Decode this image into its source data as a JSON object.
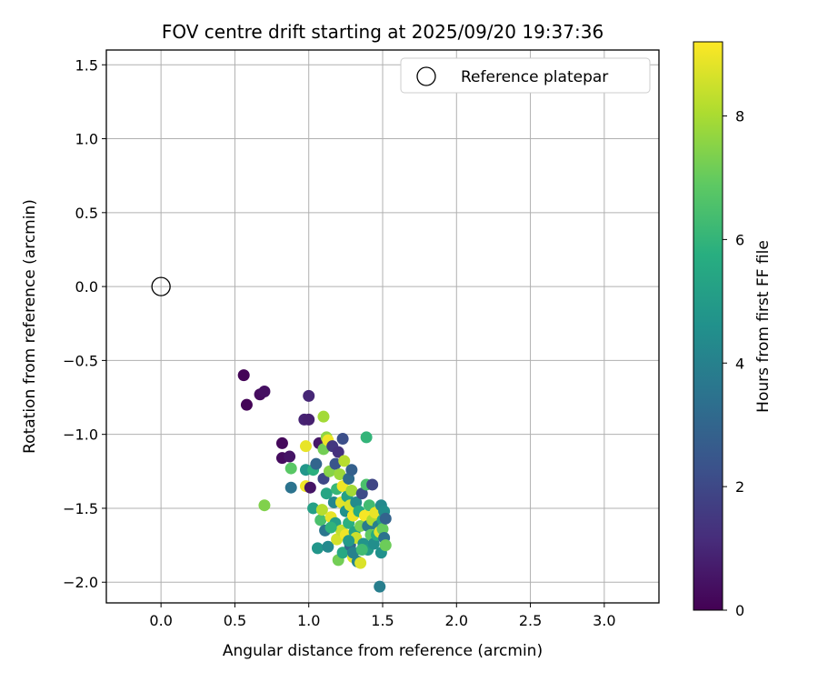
{
  "chart_data": {
    "type": "scatter",
    "title": "FOV centre drift starting at 2025/09/20 19:37:36",
    "xlabel": "Angular distance from reference (arcmin)",
    "ylabel": "Rotation from reference (arcmin)",
    "xlim": [
      -0.37,
      3.37
    ],
    "ylim": [
      -2.14,
      1.6
    ],
    "xticks": [
      "0.0",
      "0.5",
      "1.0",
      "1.5",
      "2.0",
      "2.5",
      "3.0"
    ],
    "yticks": [
      "−2.0",
      "−1.5",
      "−1.0",
      "−0.5",
      "0.0",
      "0.5",
      "1.0",
      "1.5"
    ],
    "grid": true,
    "legend": {
      "location": "top-right",
      "entries": [
        "Reference platepar"
      ]
    },
    "reference_point": {
      "x": 0.0,
      "y": 0.0,
      "label": "Reference platepar"
    },
    "colorbar": {
      "label": "Hours from first FF file",
      "range": [
        0,
        9.2
      ],
      "ticks": [
        "0",
        "2",
        "4",
        "6",
        "8"
      ],
      "colormap": "viridis"
    },
    "points": [
      {
        "x": 0.56,
        "y": -0.6,
        "t": 0.1
      },
      {
        "x": 0.58,
        "y": -0.8,
        "t": 0.1
      },
      {
        "x": 0.67,
        "y": -0.73,
        "t": 0.3
      },
      {
        "x": 0.7,
        "y": -0.71,
        "t": 0.4
      },
      {
        "x": 0.7,
        "y": -1.48,
        "t": 7.4
      },
      {
        "x": 0.82,
        "y": -1.06,
        "t": 0.2
      },
      {
        "x": 0.82,
        "y": -1.16,
        "t": 0.3
      },
      {
        "x": 0.87,
        "y": -1.15,
        "t": 0.5
      },
      {
        "x": 0.88,
        "y": -1.23,
        "t": 6.8
      },
      {
        "x": 0.88,
        "y": -1.36,
        "t": 3.5
      },
      {
        "x": 0.97,
        "y": -0.9,
        "t": 0.9
      },
      {
        "x": 1.0,
        "y": -0.74,
        "t": 1.0
      },
      {
        "x": 1.0,
        "y": -0.9,
        "t": 0.8
      },
      {
        "x": 0.98,
        "y": -1.08,
        "t": 8.9
      },
      {
        "x": 0.98,
        "y": -1.24,
        "t": 4.8
      },
      {
        "x": 0.98,
        "y": -1.35,
        "t": 9.0
      },
      {
        "x": 1.01,
        "y": -1.36,
        "t": 0.5
      },
      {
        "x": 1.03,
        "y": -1.24,
        "t": 5.8
      },
      {
        "x": 1.03,
        "y": -1.5,
        "t": 5.2
      },
      {
        "x": 1.05,
        "y": -1.2,
        "t": 3.0
      },
      {
        "x": 1.06,
        "y": -1.77,
        "t": 4.8
      },
      {
        "x": 1.07,
        "y": -1.06,
        "t": 0.6
      },
      {
        "x": 1.08,
        "y": -1.58,
        "t": 6.5
      },
      {
        "x": 1.09,
        "y": -1.51,
        "t": 8.2
      },
      {
        "x": 1.1,
        "y": -0.88,
        "t": 7.9
      },
      {
        "x": 1.1,
        "y": -1.1,
        "t": 7.2
      },
      {
        "x": 1.1,
        "y": -1.3,
        "t": 2.0
      },
      {
        "x": 1.11,
        "y": -1.65,
        "t": 3.6
      },
      {
        "x": 1.12,
        "y": -1.02,
        "t": 7.6
      },
      {
        "x": 1.12,
        "y": -1.4,
        "t": 5.4
      },
      {
        "x": 1.13,
        "y": -1.04,
        "t": 9.0
      },
      {
        "x": 1.13,
        "y": -1.76,
        "t": 4.3
      },
      {
        "x": 1.14,
        "y": -1.25,
        "t": 7.5
      },
      {
        "x": 1.15,
        "y": -1.56,
        "t": 8.9
      },
      {
        "x": 1.16,
        "y": -1.08,
        "t": 1.5
      },
      {
        "x": 1.17,
        "y": -1.46,
        "t": 4.2
      },
      {
        "x": 1.18,
        "y": -1.2,
        "t": 2.4
      },
      {
        "x": 1.18,
        "y": -1.6,
        "t": 5.1
      },
      {
        "x": 1.19,
        "y": -1.37,
        "t": 6.1
      },
      {
        "x": 1.19,
        "y": -1.71,
        "t": 8.6
      },
      {
        "x": 1.2,
        "y": -1.12,
        "t": 1.3
      },
      {
        "x": 1.2,
        "y": -1.85,
        "t": 7.2
      },
      {
        "x": 1.21,
        "y": -1.27,
        "t": 7.8
      },
      {
        "x": 1.22,
        "y": -1.46,
        "t": 8.8
      },
      {
        "x": 1.22,
        "y": -1.65,
        "t": 8.4
      },
      {
        "x": 1.23,
        "y": -1.03,
        "t": 2.2
      },
      {
        "x": 1.23,
        "y": -1.35,
        "t": 9.0
      },
      {
        "x": 1.23,
        "y": -1.8,
        "t": 5.5
      },
      {
        "x": 1.24,
        "y": -1.18,
        "t": 8.2
      },
      {
        "x": 1.25,
        "y": -1.52,
        "t": 4.6
      },
      {
        "x": 1.25,
        "y": -1.68,
        "t": 9.0
      },
      {
        "x": 1.26,
        "y": -1.42,
        "t": 5.2
      },
      {
        "x": 1.27,
        "y": -1.3,
        "t": 3.2
      },
      {
        "x": 1.27,
        "y": -1.6,
        "t": 5.8
      },
      {
        "x": 1.28,
        "y": -1.48,
        "t": 8.7
      },
      {
        "x": 1.28,
        "y": -1.75,
        "t": 3.1
      },
      {
        "x": 1.29,
        "y": -1.24,
        "t": 2.8
      },
      {
        "x": 1.29,
        "y": -1.38,
        "t": 7.9
      },
      {
        "x": 1.3,
        "y": -1.55,
        "t": 9.0
      },
      {
        "x": 1.3,
        "y": -1.83,
        "t": 8.8
      },
      {
        "x": 1.31,
        "y": -1.66,
        "t": 5.3
      },
      {
        "x": 1.32,
        "y": -1.46,
        "t": 4.4
      },
      {
        "x": 1.32,
        "y": -1.7,
        "t": 8.5
      },
      {
        "x": 1.33,
        "y": -1.86,
        "t": 4.1
      },
      {
        "x": 1.34,
        "y": -1.52,
        "t": 5.6
      },
      {
        "x": 1.35,
        "y": -1.62,
        "t": 7.3
      },
      {
        "x": 1.35,
        "y": -1.87,
        "t": 8.7
      },
      {
        "x": 1.36,
        "y": -1.4,
        "t": 2.1
      },
      {
        "x": 1.37,
        "y": -1.74,
        "t": 4.7
      },
      {
        "x": 1.38,
        "y": -1.55,
        "t": 9.1
      },
      {
        "x": 1.39,
        "y": -1.34,
        "t": 6.5
      },
      {
        "x": 1.39,
        "y": -1.02,
        "t": 6.0
      },
      {
        "x": 1.4,
        "y": -1.78,
        "t": 5.0
      },
      {
        "x": 1.4,
        "y": -1.62,
        "t": 3.8
      },
      {
        "x": 1.41,
        "y": -1.48,
        "t": 6.3
      },
      {
        "x": 1.42,
        "y": -1.68,
        "t": 6.9
      },
      {
        "x": 1.43,
        "y": -1.34,
        "t": 1.9
      },
      {
        "x": 1.43,
        "y": -1.58,
        "t": 8.1
      },
      {
        "x": 1.44,
        "y": -1.74,
        "t": 4.5
      },
      {
        "x": 1.45,
        "y": -1.53,
        "t": 8.9
      },
      {
        "x": 1.46,
        "y": -1.68,
        "t": 5.7
      },
      {
        "x": 1.47,
        "y": -1.62,
        "t": 4.0
      },
      {
        "x": 1.48,
        "y": -2.03,
        "t": 3.9
      },
      {
        "x": 1.48,
        "y": -1.66,
        "t": 8.8
      },
      {
        "x": 1.49,
        "y": -1.48,
        "t": 4.3
      },
      {
        "x": 1.49,
        "y": -1.8,
        "t": 4.6
      },
      {
        "x": 1.5,
        "y": -1.58,
        "t": 5.3
      },
      {
        "x": 1.5,
        "y": -1.64,
        "t": 7.0
      },
      {
        "x": 1.51,
        "y": -1.52,
        "t": 4.5
      },
      {
        "x": 1.51,
        "y": -1.7,
        "t": 3.5
      },
      {
        "x": 1.52,
        "y": -1.57,
        "t": 2.9
      },
      {
        "x": 1.52,
        "y": -1.75,
        "t": 7.1
      },
      {
        "x": 1.3,
        "y": -1.8,
        "t": 4.0
      },
      {
        "x": 1.36,
        "y": -1.78,
        "t": 6.3
      },
      {
        "x": 1.27,
        "y": -1.72,
        "t": 4.9
      },
      {
        "x": 1.15,
        "y": -1.63,
        "t": 5.9
      }
    ]
  }
}
